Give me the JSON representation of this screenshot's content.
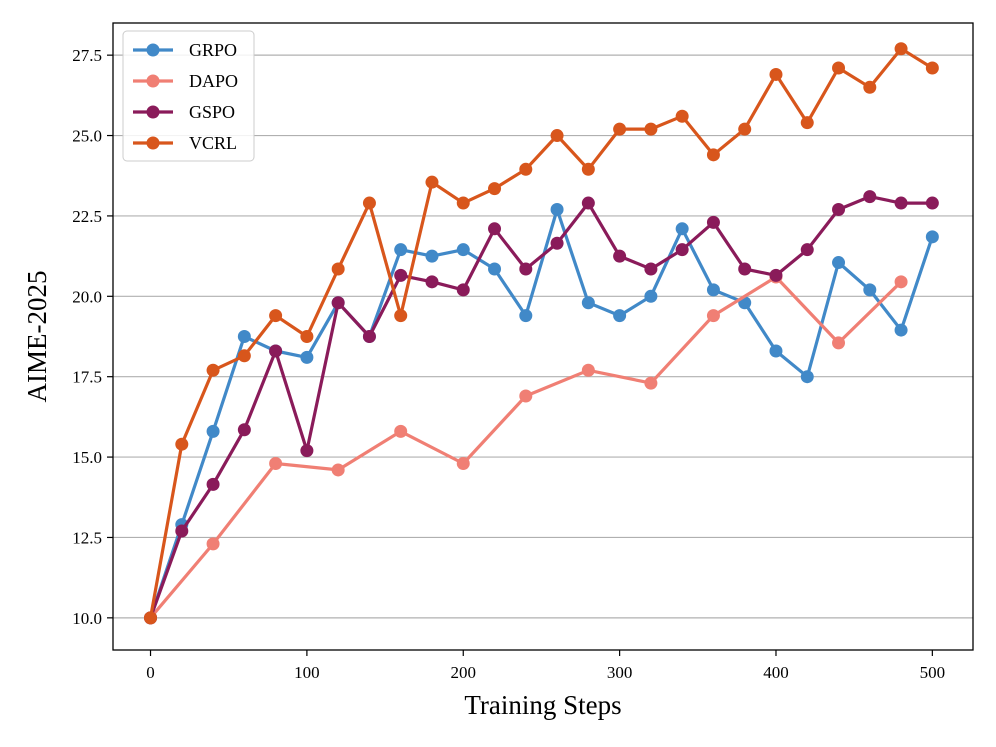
{
  "chart_data": {
    "type": "line",
    "title": "",
    "xlabel": "Training Steps",
    "ylabel": "AIME-2025",
    "xlim": [
      -24,
      526
    ],
    "ylim": [
      9.0,
      28.5
    ],
    "xticks": [
      0,
      100,
      200,
      300,
      400,
      500
    ],
    "yticks": [
      10.0,
      12.5,
      15.0,
      17.5,
      20.0,
      22.5,
      25.0,
      27.5
    ],
    "ytick_labels": [
      "10.0",
      "12.5",
      "15.0",
      "17.5",
      "20.0",
      "22.5",
      "25.0",
      "27.5"
    ],
    "grid": "horizontal",
    "legend_position": "top-left",
    "series": [
      {
        "name": "GRPO",
        "color": "#4189c8",
        "x": [
          0,
          20,
          40,
          60,
          80,
          100,
          120,
          140,
          160,
          180,
          200,
          220,
          240,
          260,
          280,
          300,
          320,
          340,
          360,
          380,
          400,
          420,
          440,
          460,
          480,
          500
        ],
        "values": [
          10.0,
          12.9,
          15.8,
          18.75,
          18.3,
          18.1,
          19.8,
          18.75,
          21.45,
          21.25,
          21.45,
          20.85,
          19.4,
          22.7,
          19.8,
          19.4,
          20.0,
          22.1,
          20.2,
          19.8,
          18.3,
          17.5,
          21.05,
          20.2,
          18.95,
          21.85
        ]
      },
      {
        "name": "DAPO",
        "color": "#f07f74",
        "x": [
          0,
          40,
          80,
          120,
          160,
          200,
          240,
          280,
          320,
          360,
          400,
          440,
          480
        ],
        "values": [
          10.0,
          12.3,
          14.8,
          14.6,
          15.8,
          14.8,
          16.9,
          17.7,
          17.3,
          19.4,
          20.6,
          18.55,
          20.45
        ]
      },
      {
        "name": "GSPO",
        "color": "#8a1b5a",
        "x": [
          0,
          20,
          40,
          60,
          80,
          100,
          120,
          140,
          160,
          180,
          200,
          220,
          240,
          260,
          280,
          300,
          320,
          340,
          360,
          380,
          400,
          420,
          440,
          460,
          480,
          500
        ],
        "values": [
          10.0,
          12.7,
          14.15,
          15.85,
          18.3,
          15.2,
          19.8,
          18.75,
          20.65,
          20.45,
          20.2,
          22.1,
          20.85,
          21.65,
          22.9,
          21.25,
          20.85,
          21.45,
          22.3,
          20.85,
          20.65,
          21.45,
          22.7,
          23.1,
          22.9,
          22.9
        ]
      },
      {
        "name": "VCRL",
        "color": "#d8561c",
        "x": [
          0,
          20,
          40,
          60,
          80,
          100,
          120,
          140,
          160,
          180,
          200,
          220,
          240,
          260,
          280,
          300,
          320,
          340,
          360,
          380,
          400,
          420,
          440,
          460,
          480,
          500
        ],
        "values": [
          10.0,
          15.4,
          17.7,
          18.15,
          19.4,
          18.75,
          20.85,
          22.9,
          19.4,
          23.55,
          22.9,
          23.35,
          23.95,
          25.0,
          23.95,
          25.2,
          25.2,
          25.6,
          24.4,
          25.2,
          26.9,
          25.4,
          27.1,
          26.5,
          27.7,
          27.1
        ]
      }
    ]
  }
}
